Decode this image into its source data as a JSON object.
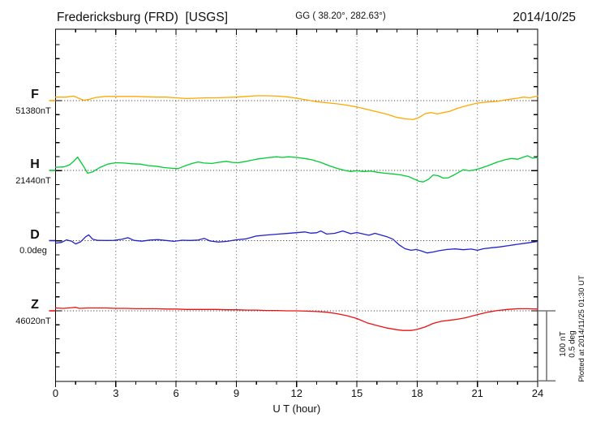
{
  "header": {
    "station": "Fredericksburg (FRD)  [USGS]",
    "coords": "GG ( 38.20°, 282.63°)",
    "date": "2014/10/25"
  },
  "xaxis": {
    "label": "U T (hour)"
  },
  "scalebar": {
    "line1": "100 nT",
    "line2": "0.5 deg"
  },
  "note_rotated": "Plotted at 2014/11/25 01:30 UT",
  "chart_data": {
    "type": "line",
    "title": "Fredericksburg (FRD) [USGS] magnetogram 2014/10/25",
    "xlabel": "U T (hour)",
    "xlim": [
      0,
      24
    ],
    "x_ticks": [
      0,
      3,
      6,
      9,
      12,
      15,
      18,
      21,
      24
    ],
    "x_minor_step_hours": 1,
    "grid": {
      "vertical_dotted_every_hours": 3,
      "horizontal_dotted_at": "each channel baseline"
    },
    "scale_per_division": {
      "nT": 100,
      "deg": 0.5
    },
    "y_minor_tick_nT": 20,
    "series": [
      {
        "name": "F",
        "unit": "nT",
        "base_value": 51380,
        "value_label": "51380nT",
        "color": "#FFA800",
        "offsets": [
          [
            0,
            5
          ],
          [
            0.5,
            5
          ],
          [
            0.9,
            6.5
          ],
          [
            1.1,
            4
          ],
          [
            1.4,
            0.5
          ],
          [
            1.7,
            2
          ],
          [
            2,
            4.5
          ],
          [
            2.5,
            6
          ],
          [
            3,
            6
          ],
          [
            3.5,
            6
          ],
          [
            4,
            6
          ],
          [
            4.5,
            5.5
          ],
          [
            5,
            5
          ],
          [
            5.5,
            5
          ],
          [
            6,
            4
          ],
          [
            6.5,
            3
          ],
          [
            7,
            3.5
          ],
          [
            7.5,
            4
          ],
          [
            8,
            4
          ],
          [
            8.5,
            4.5
          ],
          [
            9,
            5
          ],
          [
            9.5,
            6
          ],
          [
            10,
            7
          ],
          [
            10.5,
            7
          ],
          [
            11,
            6.5
          ],
          [
            11.5,
            5.5
          ],
          [
            12,
            3.5
          ],
          [
            12.5,
            1
          ],
          [
            13,
            -1.5
          ],
          [
            13.5,
            -3
          ],
          [
            14,
            -4.5
          ],
          [
            14.5,
            -6.5
          ],
          [
            15,
            -9
          ],
          [
            15.5,
            -12.5
          ],
          [
            16,
            -16
          ],
          [
            16.5,
            -19.5
          ],
          [
            17,
            -24
          ],
          [
            17.4,
            -26
          ],
          [
            17.8,
            -27
          ],
          [
            18.1,
            -24
          ],
          [
            18.4,
            -18.5
          ],
          [
            18.7,
            -17
          ],
          [
            19,
            -19
          ],
          [
            19.3,
            -17
          ],
          [
            19.6,
            -15.5
          ],
          [
            20,
            -11
          ],
          [
            20.5,
            -7
          ],
          [
            21,
            -3.5
          ],
          [
            21.5,
            -2
          ],
          [
            22,
            -1
          ],
          [
            22.5,
            1.5
          ],
          [
            23,
            3.5
          ],
          [
            23.3,
            5
          ],
          [
            23.6,
            4
          ],
          [
            24,
            6.5
          ]
        ]
      },
      {
        "name": "H",
        "unit": "nT",
        "base_value": 21440,
        "value_label": "21440nT",
        "color": "#00CC33",
        "offsets": [
          [
            0,
            4.5
          ],
          [
            0.4,
            5
          ],
          [
            0.7,
            8
          ],
          [
            0.9,
            13
          ],
          [
            1.1,
            19
          ],
          [
            1.35,
            8
          ],
          [
            1.6,
            -4
          ],
          [
            1.85,
            -2
          ],
          [
            2.2,
            4
          ],
          [
            2.6,
            9
          ],
          [
            3,
            11
          ],
          [
            3.4,
            10.5
          ],
          [
            3.8,
            9.5
          ],
          [
            4.2,
            9
          ],
          [
            4.6,
            7
          ],
          [
            5,
            6
          ],
          [
            5.4,
            4
          ],
          [
            5.8,
            3
          ],
          [
            6.1,
            2.5
          ],
          [
            6.4,
            6
          ],
          [
            6.8,
            10
          ],
          [
            7.1,
            12
          ],
          [
            7.4,
            10.5
          ],
          [
            7.8,
            10
          ],
          [
            8.1,
            11.5
          ],
          [
            8.5,
            13
          ],
          [
            8.8,
            11.5
          ],
          [
            9.1,
            11
          ],
          [
            9.5,
            13
          ],
          [
            10,
            16
          ],
          [
            10.5,
            18
          ],
          [
            11,
            19.5
          ],
          [
            11.3,
            18.5
          ],
          [
            11.6,
            19.5
          ],
          [
            12,
            18.5
          ],
          [
            12.4,
            17
          ],
          [
            12.8,
            15
          ],
          [
            13.2,
            11.5
          ],
          [
            13.6,
            7
          ],
          [
            14,
            3
          ],
          [
            14.4,
            0
          ],
          [
            14.7,
            -1.5
          ],
          [
            15,
            -0.5
          ],
          [
            15.3,
            -1.5
          ],
          [
            15.7,
            -1
          ],
          [
            16,
            -2.5
          ],
          [
            16.4,
            -4
          ],
          [
            16.8,
            -5
          ],
          [
            17.2,
            -6.5
          ],
          [
            17.6,
            -9
          ],
          [
            17.9,
            -13
          ],
          [
            18.1,
            -15.5
          ],
          [
            18.3,
            -16.5
          ],
          [
            18.55,
            -13
          ],
          [
            18.8,
            -6.5
          ],
          [
            19.05,
            -7.5
          ],
          [
            19.3,
            -11
          ],
          [
            19.55,
            -10.5
          ],
          [
            19.8,
            -7
          ],
          [
            20.05,
            -3
          ],
          [
            20.3,
            1
          ],
          [
            20.6,
            -0.5
          ],
          [
            20.9,
            1
          ],
          [
            21.2,
            3.5
          ],
          [
            21.6,
            7.5
          ],
          [
            22,
            12
          ],
          [
            22.4,
            15.5
          ],
          [
            22.7,
            17
          ],
          [
            23,
            16
          ],
          [
            23.25,
            18.5
          ],
          [
            23.5,
            21
          ],
          [
            23.75,
            17.5
          ],
          [
            24,
            18.5
          ]
        ]
      },
      {
        "name": "D",
        "unit": "deg",
        "base_value": 0.0,
        "value_label": "0.0deg",
        "color": "#2222CC",
        "offsets": [
          [
            0,
            -0.018
          ],
          [
            0.3,
            -0.013
          ],
          [
            0.55,
            0.005
          ],
          [
            0.8,
            -0.004
          ],
          [
            1,
            -0.024
          ],
          [
            1.25,
            -0.008
          ],
          [
            1.5,
            0.028
          ],
          [
            1.65,
            0.041
          ],
          [
            1.85,
            0.01
          ],
          [
            2.1,
            0.002
          ],
          [
            2.5,
            0.001
          ],
          [
            2.9,
            0.002
          ],
          [
            3.3,
            0.009
          ],
          [
            3.6,
            0.021
          ],
          [
            3.9,
            0.002
          ],
          [
            4.3,
            -0.004
          ],
          [
            4.7,
            0.004
          ],
          [
            5.1,
            0.007
          ],
          [
            5.5,
            0.001
          ],
          [
            5.9,
            -0.005
          ],
          [
            6.3,
            0.003
          ],
          [
            6.7,
            0.001
          ],
          [
            7.1,
            0.004
          ],
          [
            7.4,
            0.016
          ],
          [
            7.7,
            -0.003
          ],
          [
            8.1,
            -0.01
          ],
          [
            8.5,
            -0.006
          ],
          [
            9,
            0.006
          ],
          [
            9.5,
            0.013
          ],
          [
            10,
            0.033
          ],
          [
            10.5,
            0.04
          ],
          [
            11,
            0.046
          ],
          [
            11.5,
            0.051
          ],
          [
            12,
            0.057
          ],
          [
            12.4,
            0.062
          ],
          [
            12.7,
            0.053
          ],
          [
            13,
            0.056
          ],
          [
            13.2,
            0.069
          ],
          [
            13.5,
            0.047
          ],
          [
            13.9,
            0.052
          ],
          [
            14.3,
            0.069
          ],
          [
            14.7,
            0.049
          ],
          [
            15,
            0.058
          ],
          [
            15.3,
            0.048
          ],
          [
            15.6,
            0.038
          ],
          [
            15.9,
            0.052
          ],
          [
            16.2,
            0.04
          ],
          [
            16.5,
            0.028
          ],
          [
            16.8,
            0.01
          ],
          [
            17.1,
            -0.03
          ],
          [
            17.4,
            -0.058
          ],
          [
            17.7,
            -0.069
          ],
          [
            17.95,
            -0.063
          ],
          [
            18.2,
            -0.073
          ],
          [
            18.5,
            -0.088
          ],
          [
            18.8,
            -0.081
          ],
          [
            19.1,
            -0.072
          ],
          [
            19.5,
            -0.063
          ],
          [
            19.9,
            -0.059
          ],
          [
            20.3,
            -0.065
          ],
          [
            20.7,
            -0.06
          ],
          [
            21,
            -0.069
          ],
          [
            21.3,
            -0.058
          ],
          [
            21.7,
            -0.051
          ],
          [
            22.1,
            -0.045
          ],
          [
            22.5,
            -0.037
          ],
          [
            23,
            -0.026
          ],
          [
            23.5,
            -0.016
          ],
          [
            24,
            -0.006
          ]
        ]
      },
      {
        "name": "Z",
        "unit": "nT",
        "base_value": 46020,
        "value_label": "46020nT",
        "color": "#EE1111",
        "offsets": [
          [
            0,
            4
          ],
          [
            0.4,
            3.5
          ],
          [
            0.8,
            4.5
          ],
          [
            1,
            5
          ],
          [
            1.2,
            3.5
          ],
          [
            1.6,
            4
          ],
          [
            2,
            4
          ],
          [
            2.5,
            4
          ],
          [
            3,
            3.5
          ],
          [
            3.5,
            3.5
          ],
          [
            4,
            3
          ],
          [
            4.5,
            3
          ],
          [
            5,
            3
          ],
          [
            5.5,
            2.5
          ],
          [
            6,
            2.5
          ],
          [
            6.5,
            2
          ],
          [
            7,
            2
          ],
          [
            7.5,
            2
          ],
          [
            8,
            2
          ],
          [
            8.5,
            1.5
          ],
          [
            9,
            1.5
          ],
          [
            9.5,
            1
          ],
          [
            10,
            1
          ],
          [
            10.5,
            0.5
          ],
          [
            11,
            0.5
          ],
          [
            11.5,
            0
          ],
          [
            12,
            0
          ],
          [
            12.5,
            -0.5
          ],
          [
            13,
            -1
          ],
          [
            13.5,
            -2
          ],
          [
            14,
            -4
          ],
          [
            14.5,
            -7
          ],
          [
            15,
            -11
          ],
          [
            15.5,
            -17
          ],
          [
            16,
            -21
          ],
          [
            16.5,
            -24.5
          ],
          [
            17,
            -27
          ],
          [
            17.3,
            -28
          ],
          [
            17.7,
            -28
          ],
          [
            18,
            -26.5
          ],
          [
            18.4,
            -23
          ],
          [
            18.8,
            -18
          ],
          [
            19.2,
            -15
          ],
          [
            19.6,
            -13.5
          ],
          [
            20,
            -12
          ],
          [
            20.4,
            -10
          ],
          [
            20.8,
            -7
          ],
          [
            21.2,
            -4
          ],
          [
            21.6,
            -1.5
          ],
          [
            22,
            0.5
          ],
          [
            22.5,
            2
          ],
          [
            23,
            3
          ],
          [
            23.5,
            3
          ],
          [
            24,
            2.5
          ]
        ]
      }
    ]
  }
}
